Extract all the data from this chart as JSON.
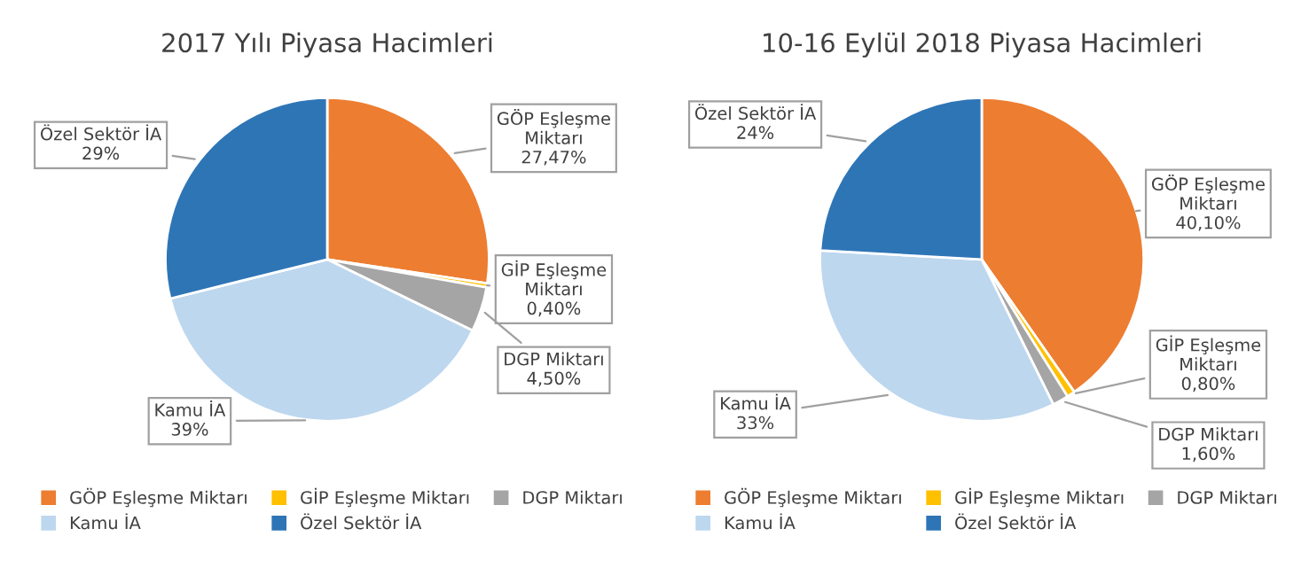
{
  "chart_data": [
    {
      "type": "pie",
      "title": "2017 Yılı Piyasa Hacimleri",
      "categories": [
        "GÖP Eşleşme Miktarı",
        "GİP Eşleşme Miktarı",
        "DGP Miktarı",
        "Kamu İA",
        "Özel Sektör İA"
      ],
      "values": [
        27.47,
        0.4,
        4.5,
        39,
        29
      ],
      "value_labels": [
        "27,47%",
        "0,40%",
        "4,50%",
        "39%",
        "29%"
      ],
      "colors": [
        "#ed7d31",
        "#ffc000",
        "#a5a5a5",
        "#bdd7ee",
        "#2e75b6"
      ],
      "legend": "bottom"
    },
    {
      "type": "pie",
      "title": "10-16 Eylül 2018 Piyasa Hacimleri",
      "categories": [
        "GÖP Eşleşme Miktarı",
        "GİP Eşleşme Miktarı",
        "DGP Miktarı",
        "Kamu İA",
        "Özel Sektör İA"
      ],
      "values": [
        40.1,
        0.8,
        1.6,
        33,
        24
      ],
      "value_labels": [
        "40,10%",
        "0,80%",
        "1,60%",
        "33%",
        "24%"
      ],
      "colors": [
        "#ed7d31",
        "#ffc000",
        "#a5a5a5",
        "#bdd7ee",
        "#2e75b6"
      ],
      "legend": "bottom"
    }
  ]
}
